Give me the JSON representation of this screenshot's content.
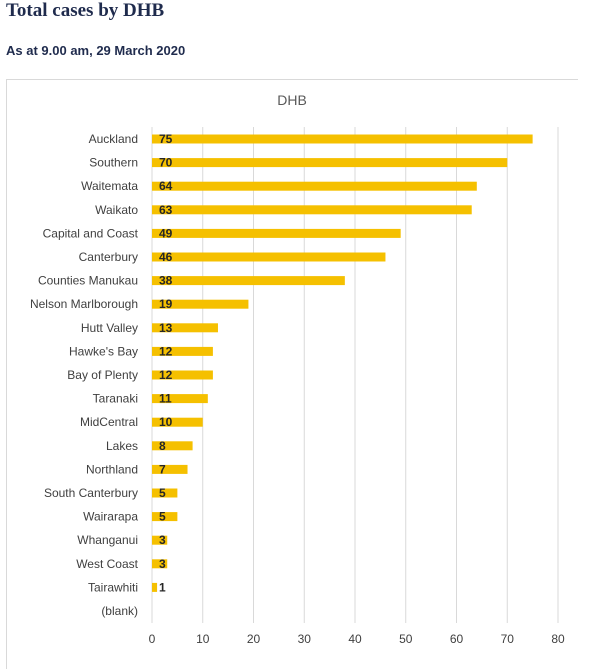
{
  "header": {
    "title": "Total cases by DHB",
    "subtitle": "As at 9.00 am, 29 March 2020"
  },
  "chart_data": {
    "type": "bar",
    "orientation": "horizontal",
    "title": "DHB",
    "categories": [
      "Auckland",
      "Southern",
      "Waitemata",
      "Waikato",
      "Capital and Coast",
      "Canterbury",
      "Counties Manukau",
      "Nelson Marlborough",
      "Hutt Valley",
      "Hawke's Bay",
      "Bay of Plenty",
      "Taranaki",
      "MidCentral",
      "Lakes",
      "Northland",
      "South Canterbury",
      "Wairarapa",
      "Whanganui",
      "West Coast",
      "Tairawhiti",
      "(blank)"
    ],
    "values": [
      75,
      70,
      64,
      63,
      49,
      46,
      38,
      19,
      13,
      12,
      12,
      11,
      10,
      8,
      7,
      5,
      5,
      3,
      3,
      1,
      null
    ],
    "data_labels": [
      "75",
      "70",
      "64",
      "63",
      "49",
      "46",
      "38",
      "19",
      "13",
      "12",
      "12",
      "11",
      "10",
      "8",
      "7",
      "5",
      "5",
      "3",
      "3",
      "1",
      ""
    ],
    "xlim": [
      0,
      80
    ],
    "xticks": [
      0,
      10,
      20,
      30,
      40,
      50,
      60,
      70,
      80
    ],
    "grid": "vertical",
    "legend": "none",
    "bar_color": "#f5c000",
    "grid_color": "#d9d9d9"
  }
}
